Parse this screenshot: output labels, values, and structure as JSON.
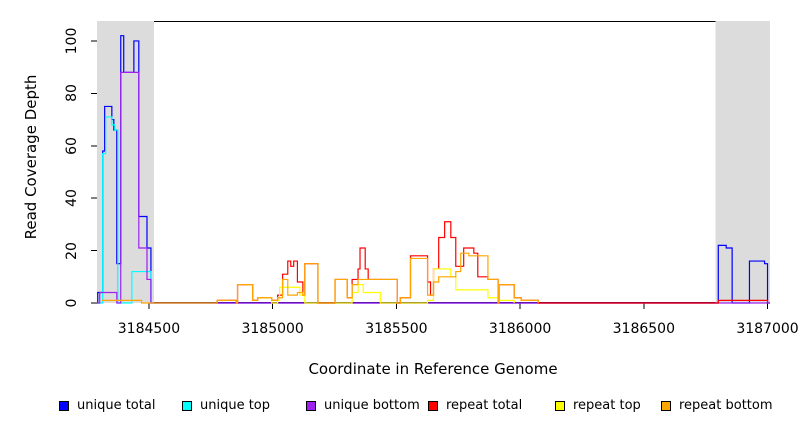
{
  "chart_data": {
    "type": "line",
    "subtype": "step-coverage-profile",
    "title": "",
    "xlabel": "Coordinate in Reference Genome",
    "ylabel": "Read Coverage Depth",
    "xlim": [
      3184290,
      3187010
    ],
    "ylim": [
      0,
      107.6
    ],
    "grid": false,
    "x_ticks": [
      3184500,
      3185000,
      3185500,
      3186000,
      3186500,
      3187000
    ],
    "x_tick_labels": [
      "3184500",
      "3185000",
      "3185500",
      "3186000",
      "3186500",
      "3187000"
    ],
    "y_ticks": [
      0,
      20,
      40,
      60,
      80,
      100
    ],
    "y_tick_labels": [
      "0",
      "20",
      "40",
      "60",
      "80",
      "100"
    ],
    "shaded_regions": [
      {
        "x0": 3184290,
        "x1": 3184520,
        "color": "#DCDCDC"
      },
      {
        "x0": 3186790,
        "x1": 3187010,
        "color": "#DCDCDC"
      }
    ],
    "series": [
      {
        "name": "unique total",
        "color": "#0000FF",
        "extend_right": true,
        "steps": [
          [
            3184290,
            0
          ],
          [
            3184293,
            4
          ],
          [
            3184313,
            58
          ],
          [
            3184321,
            75
          ],
          [
            3184350,
            70
          ],
          [
            3184358,
            66
          ],
          [
            3184370,
            15
          ],
          [
            3184386,
            102
          ],
          [
            3184398,
            88
          ],
          [
            3184439,
            100
          ],
          [
            3184459,
            33
          ],
          [
            3184492,
            21
          ],
          [
            3184508,
            0
          ],
          [
            3186801,
            22
          ],
          [
            3186833,
            21
          ],
          [
            3186857,
            0
          ],
          [
            3186927,
            16
          ],
          [
            3186988,
            15
          ],
          [
            3187000,
            0
          ]
        ]
      },
      {
        "name": "unique top",
        "color": "#00FFFF",
        "extend_right": false,
        "steps": [
          [
            3184290,
            0
          ],
          [
            3184313,
            57
          ],
          [
            3184325,
            71
          ],
          [
            3184350,
            68
          ],
          [
            3184362,
            66
          ],
          [
            3184374,
            0
          ],
          [
            3184431,
            12
          ],
          [
            3184508,
            0
          ]
        ]
      },
      {
        "name": "unique bottom",
        "color": "#A020F0",
        "extend_right": true,
        "steps": [
          [
            3184290,
            0
          ],
          [
            3184301,
            4
          ],
          [
            3184370,
            0
          ],
          [
            3184386,
            88
          ],
          [
            3184459,
            21
          ],
          [
            3184492,
            9
          ],
          [
            3184508,
            0
          ]
        ]
      },
      {
        "name": "repeat total",
        "color": "#FF0000",
        "extend_right": false,
        "steps": [
          [
            3184770,
            0
          ],
          [
            3184776,
            1
          ],
          [
            3184853,
            0
          ],
          [
            3184858,
            7
          ],
          [
            3184919,
            1
          ],
          [
            3184939,
            2
          ],
          [
            3184996,
            1
          ],
          [
            3185020,
            3
          ],
          [
            3185040,
            11
          ],
          [
            3185061,
            16
          ],
          [
            3185073,
            14
          ],
          [
            3185085,
            16
          ],
          [
            3185100,
            8
          ],
          [
            3185122,
            3
          ],
          [
            3185130,
            15
          ],
          [
            3185183,
            0
          ],
          [
            3185252,
            9
          ],
          [
            3185301,
            2
          ],
          [
            3185321,
            9
          ],
          [
            3185345,
            13
          ],
          [
            3185353,
            21
          ],
          [
            3185374,
            13
          ],
          [
            3185386,
            9
          ],
          [
            3185504,
            0
          ],
          [
            3185516,
            2
          ],
          [
            3185557,
            18
          ],
          [
            3185626,
            8
          ],
          [
            3185638,
            3
          ],
          [
            3185650,
            13
          ],
          [
            3185671,
            25
          ],
          [
            3185695,
            31
          ],
          [
            3185720,
            25
          ],
          [
            3185740,
            14
          ],
          [
            3185772,
            21
          ],
          [
            3185813,
            19
          ],
          [
            3185829,
            10
          ],
          [
            3185870,
            9
          ],
          [
            3185911,
            0
          ],
          [
            3185915,
            7
          ],
          [
            3185976,
            2
          ],
          [
            3186004,
            1
          ],
          [
            3186073,
            0
          ],
          [
            3186801,
            1
          ],
          [
            3187000,
            0
          ]
        ]
      },
      {
        "name": "repeat top",
        "color": "#FFFF00",
        "extend_right": false,
        "steps": [
          [
            3184939,
            2
          ],
          [
            3184996,
            0
          ],
          [
            3185020,
            1
          ],
          [
            3185028,
            6
          ],
          [
            3185110,
            3
          ],
          [
            3185130,
            0
          ],
          [
            3185321,
            4
          ],
          [
            3185345,
            7
          ],
          [
            3185366,
            4
          ],
          [
            3185435,
            0
          ],
          [
            3185626,
            1
          ],
          [
            3185650,
            13
          ],
          [
            3185720,
            10
          ],
          [
            3185740,
            5
          ],
          [
            3185870,
            2
          ],
          [
            3185911,
            1
          ],
          [
            3185976,
            0
          ]
        ]
      },
      {
        "name": "repeat bottom",
        "color": "#FFA500",
        "extend_right": false,
        "steps": [
          [
            3184310,
            1
          ],
          [
            3184470,
            0
          ],
          [
            3184776,
            1
          ],
          [
            3184853,
            0
          ],
          [
            3184858,
            7
          ],
          [
            3184919,
            1
          ],
          [
            3184939,
            2
          ],
          [
            3184996,
            1
          ],
          [
            3185020,
            2
          ],
          [
            3185040,
            9
          ],
          [
            3185061,
            3
          ],
          [
            3185100,
            4
          ],
          [
            3185122,
            3
          ],
          [
            3185130,
            15
          ],
          [
            3185183,
            0
          ],
          [
            3185252,
            9
          ],
          [
            3185301,
            2
          ],
          [
            3185321,
            7
          ],
          [
            3185345,
            9
          ],
          [
            3185386,
            9
          ],
          [
            3185504,
            0
          ],
          [
            3185516,
            2
          ],
          [
            3185557,
            17
          ],
          [
            3185626,
            3
          ],
          [
            3185650,
            8
          ],
          [
            3185671,
            10
          ],
          [
            3185740,
            12
          ],
          [
            3185760,
            19
          ],
          [
            3185793,
            18
          ],
          [
            3185870,
            9
          ],
          [
            3185911,
            0
          ],
          [
            3185915,
            7
          ],
          [
            3185976,
            2
          ],
          [
            3186004,
            1
          ],
          [
            3186073,
            0
          ]
        ]
      }
    ]
  },
  "legend": {
    "items": [
      {
        "label": "unique total",
        "color": "#0000FF",
        "x": 59
      },
      {
        "label": "unique top",
        "color": "#00FFFF",
        "x": 182
      },
      {
        "label": "unique bottom",
        "color": "#A020F0",
        "x": 306
      },
      {
        "label": "repeat total",
        "color": "#FF0000",
        "x": 428
      },
      {
        "label": "repeat top",
        "color": "#FFFF00",
        "x": 555
      },
      {
        "label": "repeat bottom",
        "color": "#FFA500",
        "x": 661
      }
    ]
  },
  "colors": {
    "shading": "#DCDCDC",
    "axis": "#000000",
    "background": "#FFFFFF"
  }
}
